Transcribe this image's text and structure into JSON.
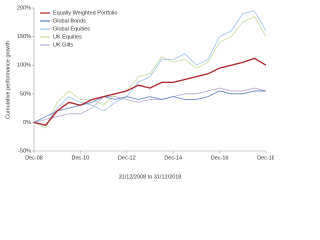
{
  "chart_data": {
    "type": "line",
    "y_label": "Cumulative performance growth",
    "x_label": "31/12/2008 to 31/12/2018",
    "categories": [
      "Dec-08",
      null,
      null,
      null,
      "Dec-10",
      null,
      null,
      null,
      "Dec-12",
      null,
      null,
      null,
      "Dec-14",
      null,
      null,
      null,
      "Dec-16",
      null,
      null,
      null,
      "Dec-18"
    ],
    "ylim": [
      -50,
      200
    ],
    "yticks": [
      {
        "value": -50,
        "label": "-50%"
      },
      {
        "value": 0,
        "label": "0%"
      },
      {
        "value": 50,
        "label": "50%"
      },
      {
        "value": 100,
        "label": "100%"
      },
      {
        "value": 150,
        "label": "150%"
      },
      {
        "value": 200,
        "label": "200%"
      }
    ],
    "grid": false,
    "legend": "top-left",
    "series": [
      {
        "name": "Equally Weighted Portfolio",
        "color": "#b3202a",
        "values": [
          0,
          -5,
          20,
          35,
          30,
          40,
          45,
          50,
          55,
          65,
          60,
          70,
          70,
          75,
          80,
          85,
          95,
          100,
          105,
          112,
          100
        ]
      },
      {
        "name": "Global Bonds",
        "color": "#5b7fc4",
        "values": [
          0,
          10,
          20,
          25,
          30,
          35,
          45,
          40,
          45,
          40,
          45,
          40,
          45,
          40,
          40,
          45,
          55,
          50,
          50,
          55,
          55
        ]
      },
      {
        "name": "Global Equities",
        "color": "#9ec3ea",
        "values": [
          0,
          -5,
          25,
          45,
          35,
          30,
          20,
          35,
          45,
          70,
          80,
          110,
          110,
          120,
          100,
          110,
          150,
          160,
          190,
          195,
          160
        ]
      },
      {
        "name": "UK Equities",
        "color": "#c6dc9c",
        "values": [
          0,
          -10,
          35,
          55,
          40,
          40,
          30,
          50,
          55,
          80,
          85,
          115,
          105,
          110,
          95,
          105,
          140,
          150,
          175,
          185,
          150
        ]
      },
      {
        "name": "UK Gilts",
        "color": "#b9a9d4",
        "values": [
          0,
          5,
          10,
          15,
          15,
          25,
          45,
          45,
          40,
          35,
          40,
          40,
          45,
          50,
          50,
          55,
          60,
          55,
          55,
          60,
          55
        ]
      }
    ]
  }
}
